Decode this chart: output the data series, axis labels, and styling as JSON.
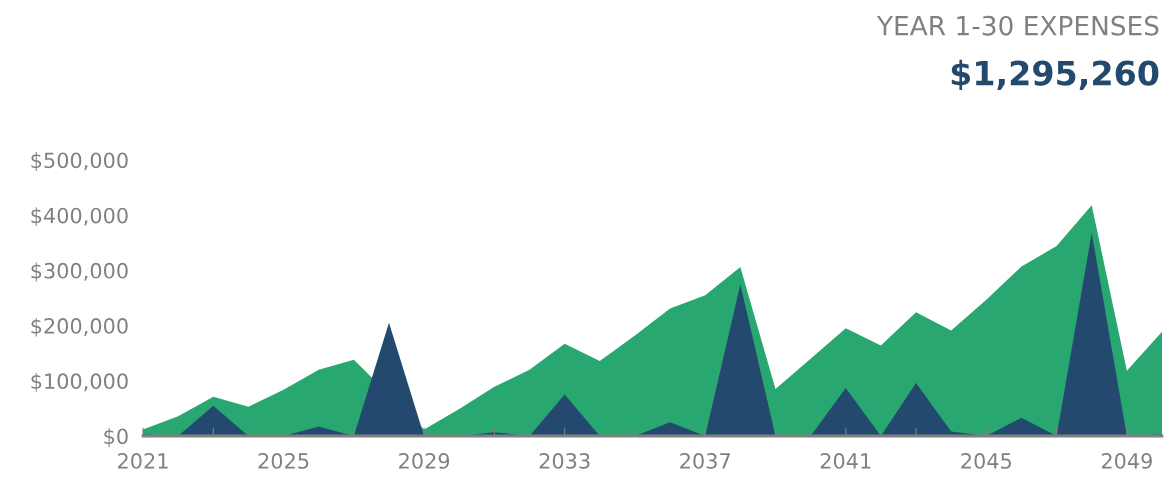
{
  "chart_data": {
    "type": "area",
    "title": "YEAR 1-30 EXPENSES",
    "subtitle": "$1,295,260",
    "x": [
      2021,
      2022,
      2023,
      2024,
      2025,
      2026,
      2027,
      2028,
      2029,
      2030,
      2031,
      2032,
      2033,
      2034,
      2035,
      2036,
      2037,
      2038,
      2039,
      2040,
      2041,
      2042,
      2043,
      2044,
      2045,
      2046,
      2047,
      2048,
      2049,
      2050
    ],
    "series": [
      {
        "color": "#28a870",
        "values": [
          12000,
          36000,
          71000,
          53000,
          84000,
          120000,
          138000,
          null,
          12000,
          49000,
          89000,
          120000,
          167000,
          136000,
          182000,
          231000,
          255000,
          306000,
          85000,
          140000,
          195000,
          164000,
          224000,
          191000,
          247000,
          307000,
          344000,
          418000,
          118000,
          189000
        ]
      },
      {
        "color": "#234a6e",
        "values": [
          3000,
          0,
          55000,
          0,
          0,
          17000,
          0,
          205000,
          0,
          0,
          7000,
          0,
          75000,
          0,
          0,
          25000,
          0,
          275000,
          0,
          0,
          87000,
          0,
          96000,
          8000,
          0,
          33000,
          0,
          368000,
          0,
          3000
        ]
      }
    ],
    "xlim": [
      2021,
      2050
    ],
    "xticks": [
      2021,
      {
        "value": 2023,
        "label": null
      },
      2025,
      {
        "value": 2027,
        "label": null
      },
      2029,
      {
        "value": 2031,
        "label": null
      },
      2033,
      {
        "value": 2035,
        "label": null
      },
      2037,
      {
        "value": 2039,
        "label": null
      },
      2041,
      {
        "value": 2043,
        "label": null
      },
      2045,
      {
        "value": 2047,
        "label": null
      },
      2049
    ],
    "ylim": [
      0,
      500000
    ],
    "yticks": [
      {
        "value": 0,
        "label": "$0"
      },
      {
        "value": 100000,
        "label": "$100,000"
      },
      {
        "value": 200000,
        "label": "$200,000"
      },
      {
        "value": 300000,
        "label": "$300,000"
      },
      {
        "value": 400000,
        "label": "$400,000"
      },
      {
        "value": 500000,
        "label": "$500,000"
      }
    ]
  }
}
